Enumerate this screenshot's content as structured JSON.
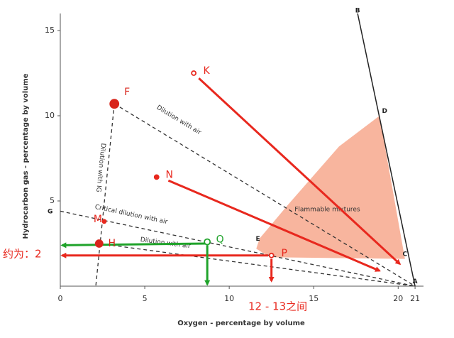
{
  "chart_data": {
    "type": "scatter",
    "x_label": "Oxygen - percentage by volume",
    "y_label": "Hydrocarbon gas - percentage by volume",
    "xlim": [
      0,
      21.5
    ],
    "ylim": [
      0,
      16
    ],
    "xticks": [
      0,
      5,
      10,
      15,
      20,
      21
    ],
    "yticks": [
      5,
      10,
      15
    ],
    "region": {
      "label": "Flammable mixtures",
      "color": "#f7ad93",
      "x": [
        11.8,
        13.5,
        16.5,
        18.9,
        20.4,
        12.4,
        11.6
      ],
      "y": [
        2.8,
        4.8,
        8.2,
        10.0,
        1.6,
        1.7,
        2.2
      ]
    },
    "lines": [
      {
        "x": [
          17.6,
          21
        ],
        "y": [
          16,
          0
        ],
        "color": "#222222",
        "style": "solid"
      },
      {
        "x": [
          3.2,
          21
        ],
        "y": [
          10.7,
          0
        ],
        "color": "#333333",
        "style": "dashed",
        "label": "Dilution with air"
      },
      {
        "x": [
          3.2,
          2.1
        ],
        "y": [
          10.7,
          0
        ],
        "color": "#333333",
        "style": "dashed",
        "label": "Dilution with IG"
      },
      {
        "x": [
          0,
          21
        ],
        "y": [
          4.4,
          0
        ],
        "color": "#333333",
        "style": "dashed",
        "label": "Critical dilution with air"
      },
      {
        "x": [
          2.3,
          21
        ],
        "y": [
          2.5,
          0
        ],
        "color": "#333333",
        "style": "dashed",
        "label": "Dilution with air"
      },
      {
        "x": [
          8.2,
          20.1
        ],
        "y": [
          12.2,
          1.3
        ],
        "color": "#e8281e",
        "style": "arrow"
      },
      {
        "x": [
          6.4,
          18.9
        ],
        "y": [
          6.2,
          0.9
        ],
        "color": "#e8281e",
        "style": "arrow"
      },
      {
        "x": [
          12.3,
          0.1
        ],
        "y": [
          1.8,
          1.8
        ],
        "color": "#e8281e",
        "style": "arrow"
      },
      {
        "x": [
          12.5,
          12.5
        ],
        "y": [
          1.6,
          0.3
        ],
        "color": "#e8281e",
        "style": "arrow"
      },
      {
        "x": [
          8.6,
          0.1
        ],
        "y": [
          2.5,
          2.4
        ],
        "color": "#1fa32a",
        "style": "arrow"
      },
      {
        "x": [
          8.7,
          8.7
        ],
        "y": [
          2.4,
          0.1
        ],
        "color": "#1fa32a",
        "style": "arrow"
      }
    ],
    "points": [
      {
        "label": "B",
        "x": 17.6,
        "y": 16,
        "color": "#222222",
        "marker": "none"
      },
      {
        "label": "D",
        "x": 19.2,
        "y": 10.1,
        "color": "#222222",
        "marker": "none"
      },
      {
        "label": "C",
        "x": 20.4,
        "y": 1.7,
        "color": "#222222",
        "marker": "none"
      },
      {
        "label": "A",
        "x": 21,
        "y": 0.1,
        "color": "#222222",
        "marker": "none"
      },
      {
        "label": "E",
        "x": 11.7,
        "y": 2.6,
        "color": "#222222",
        "marker": "none"
      },
      {
        "label": "G",
        "x": -0.6,
        "y": 4.2,
        "color": "#222222",
        "marker": "none"
      },
      {
        "label": "F",
        "x": 3.2,
        "y": 10.7,
        "color": "#d8261c",
        "marker": "filled",
        "size": 6
      },
      {
        "label": "H",
        "x": 2.3,
        "y": 2.5,
        "color": "#d8261c",
        "marker": "filled",
        "size": 5
      },
      {
        "label": "K",
        "x": 7.9,
        "y": 12.5,
        "color": "#e8281e",
        "marker": "hollow",
        "size": 3
      },
      {
        "label": "N",
        "x": 5.7,
        "y": 6.4,
        "color": "#e8281e",
        "marker": "filled",
        "size": 3
      },
      {
        "label": "M",
        "x": 2.6,
        "y": 3.8,
        "color": "#e8281e",
        "marker": "filled",
        "size": 2.5
      },
      {
        "label": "Q",
        "x": 8.7,
        "y": 2.6,
        "color": "#1fa32a",
        "marker": "hollow",
        "size": 4
      },
      {
        "label": "P",
        "x": 12.5,
        "y": 1.8,
        "color": "#e8281e",
        "marker": "hollow",
        "size": 3
      }
    ],
    "annotations": [
      "约为：2",
      "12 - 13之间"
    ]
  }
}
